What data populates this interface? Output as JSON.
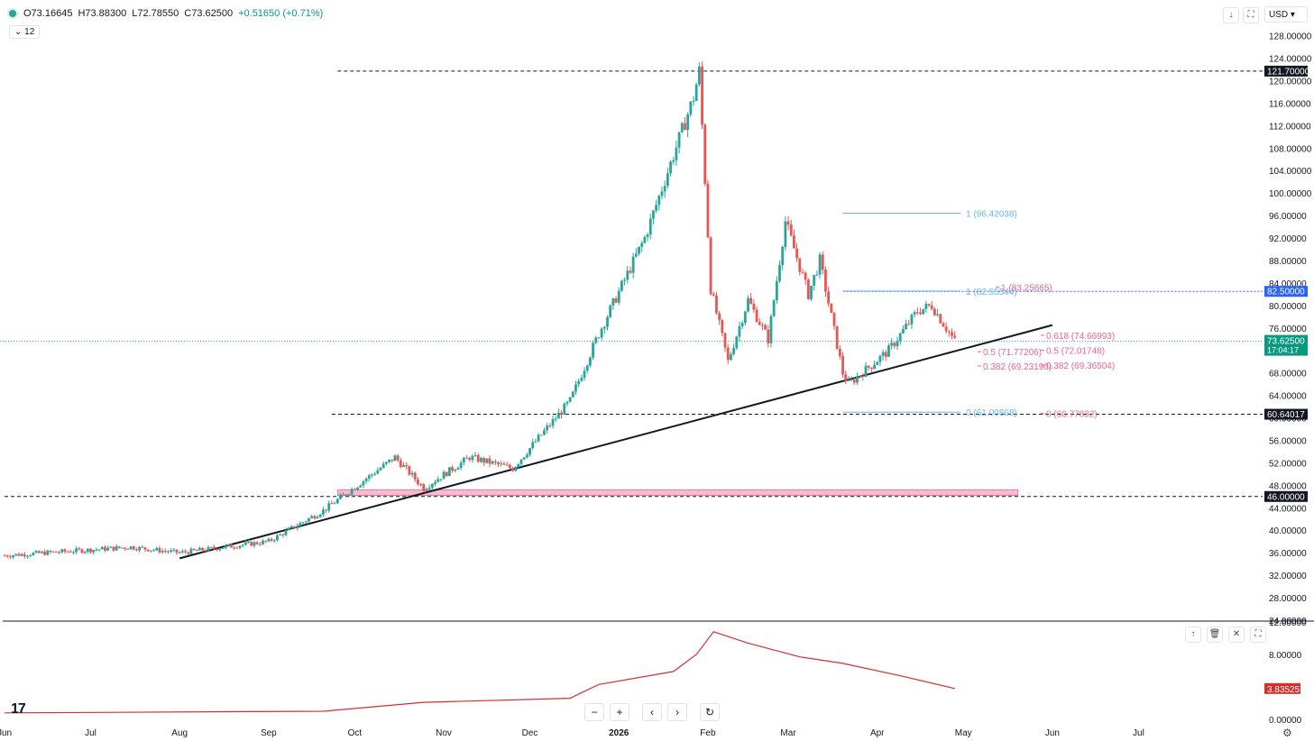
{
  "header": {
    "open": "O73.16645",
    "high": "H73.88300",
    "low": "L72.78550",
    "close": "C73.62500",
    "change": "+0.51650 (+0.71%)",
    "indicator_chip": "12",
    "currency": "USD"
  },
  "chart_data": {
    "type": "candlestick",
    "price_axis_ticks": [
      "128.00000",
      "124.00000",
      "120.00000",
      "116.00000",
      "112.00000",
      "108.00000",
      "104.00000",
      "100.00000",
      "96.00000",
      "92.00000",
      "88.00000",
      "84.00000",
      "80.00000",
      "76.00000",
      "72.00000",
      "68.00000",
      "64.00000",
      "60.00000",
      "56.00000",
      "52.00000",
      "48.00000",
      "44.00000",
      "40.00000",
      "36.00000",
      "32.00000",
      "28.00000",
      "24.00000"
    ],
    "price_range": [
      24,
      130
    ],
    "time_axis_labels": [
      "Jun",
      "Jul",
      "Aug",
      "Sep",
      "Oct",
      "Nov",
      "Dec",
      "2026",
      "Feb",
      "Mar",
      "Apr",
      "May",
      "Jun",
      "Jul"
    ],
    "ohlc_keypoints": [
      {
        "date": "2025-06-01",
        "close": 35.5
      },
      {
        "date": "2025-07-15",
        "close": 37.0
      },
      {
        "date": "2025-08-01",
        "close": 36.0
      },
      {
        "date": "2025-09-01",
        "close": 38.0
      },
      {
        "date": "2025-09-20",
        "close": 43.5
      },
      {
        "date": "2025-10-15",
        "close": 53.0
      },
      {
        "date": "2025-10-25",
        "close": 47.5
      },
      {
        "date": "2025-11-10",
        "close": 53.0
      },
      {
        "date": "2025-11-25",
        "close": 51.0
      },
      {
        "date": "2025-12-15",
        "close": 63.0
      },
      {
        "date": "2025-12-25",
        "close": 75.0
      },
      {
        "date": "2026-01-10",
        "close": 92.0
      },
      {
        "date": "2026-01-27",
        "close": 117.0
      },
      {
        "date": "2026-01-29",
        "close": 121.7
      },
      {
        "date": "2026-02-02",
        "close": 83.0
      },
      {
        "date": "2026-02-08",
        "close": 70.0
      },
      {
        "date": "2026-02-15",
        "close": 81.0
      },
      {
        "date": "2026-02-22",
        "close": 74.0
      },
      {
        "date": "2026-02-28",
        "close": 95.0
      },
      {
        "date": "2026-03-08",
        "close": 82.0
      },
      {
        "date": "2026-03-12",
        "close": 88.0
      },
      {
        "date": "2026-03-20",
        "close": 68.0
      },
      {
        "date": "2026-03-22",
        "close": 66.0
      },
      {
        "date": "2026-04-05",
        "close": 72.0
      },
      {
        "date": "2026-04-15",
        "close": 79.0
      },
      {
        "date": "2026-04-20",
        "close": 80.0
      },
      {
        "date": "2026-04-28",
        "close": 73.625
      }
    ],
    "horizontal_levels": [
      {
        "label": "121.70000",
        "value": 121.7,
        "style": "dashed",
        "color": "#131722"
      },
      {
        "label": "60.64017",
        "value": 60.64017,
        "style": "dashed",
        "color": "#131722"
      },
      {
        "label": "46.00000",
        "value": 46.0,
        "style": "dashed",
        "color": "#131722"
      },
      {
        "label": "82.50000",
        "value": 82.5,
        "style": "dotted",
        "color": "#2962ff"
      }
    ],
    "current_price": {
      "label": "73.62500",
      "countdown": "17:04:17",
      "value": 73.625
    },
    "trendline": {
      "from": {
        "date": "2025-08-01",
        "price": 35.0
      },
      "to": {
        "date": "2026-06-01",
        "price": 76.5
      }
    },
    "support_zone": {
      "from_date": "2025-09-25",
      "to_date": "2026-05-20",
      "low": 46.2,
      "high": 47.2
    },
    "fib_blue": [
      {
        "text": "1 (96.42038)",
        "value": 96.42038
      },
      {
        "text": "1 (82.55544)",
        "value": 82.55544
      },
      {
        "text": "0 (61.00868)",
        "value": 61.00868
      }
    ],
    "fib_pink": [
      {
        "text": "1 (83.25665)",
        "value": 83.25665
      },
      {
        "text": "0.618 (74.66993)",
        "value": 74.66993
      },
      {
        "text": "0.5 (71.77206)",
        "value": 71.77206
      },
      {
        "text": "0.5 (72.01748)",
        "value": 72.01748
      },
      {
        "text": "0.382 (69.23190)",
        "value": 69.2319
      },
      {
        "text": "0.382 (69.36504)",
        "value": 69.36504
      },
      {
        "text": "0 (60.77832)",
        "value": 60.77832
      }
    ],
    "indicator": {
      "ticks": [
        "12.00000",
        "8.00000",
        "0.00000"
      ],
      "range": [
        0,
        12
      ],
      "last_label": "3.83525",
      "keypoints": [
        {
          "date": "2025-06-01",
          "value": 0.8
        },
        {
          "date": "2025-09-20",
          "value": 1.0
        },
        {
          "date": "2025-10-25",
          "value": 2.1
        },
        {
          "date": "2025-12-15",
          "value": 2.6
        },
        {
          "date": "2025-12-25",
          "value": 4.3
        },
        {
          "date": "2026-01-20",
          "value": 5.9
        },
        {
          "date": "2026-01-28",
          "value": 8.0
        },
        {
          "date": "2026-02-03",
          "value": 10.8
        },
        {
          "date": "2026-02-15",
          "value": 9.4
        },
        {
          "date": "2026-03-05",
          "value": 7.7
        },
        {
          "date": "2026-03-20",
          "value": 6.9
        },
        {
          "date": "2026-04-10",
          "value": 5.3
        },
        {
          "date": "2026-04-28",
          "value": 3.8
        }
      ]
    }
  },
  "colors": {
    "up": "#26a69a",
    "down": "#ef5350",
    "fib_blue": "#64b5f6",
    "fib_pink": "#f06292",
    "indicator": "#d32f2f"
  }
}
